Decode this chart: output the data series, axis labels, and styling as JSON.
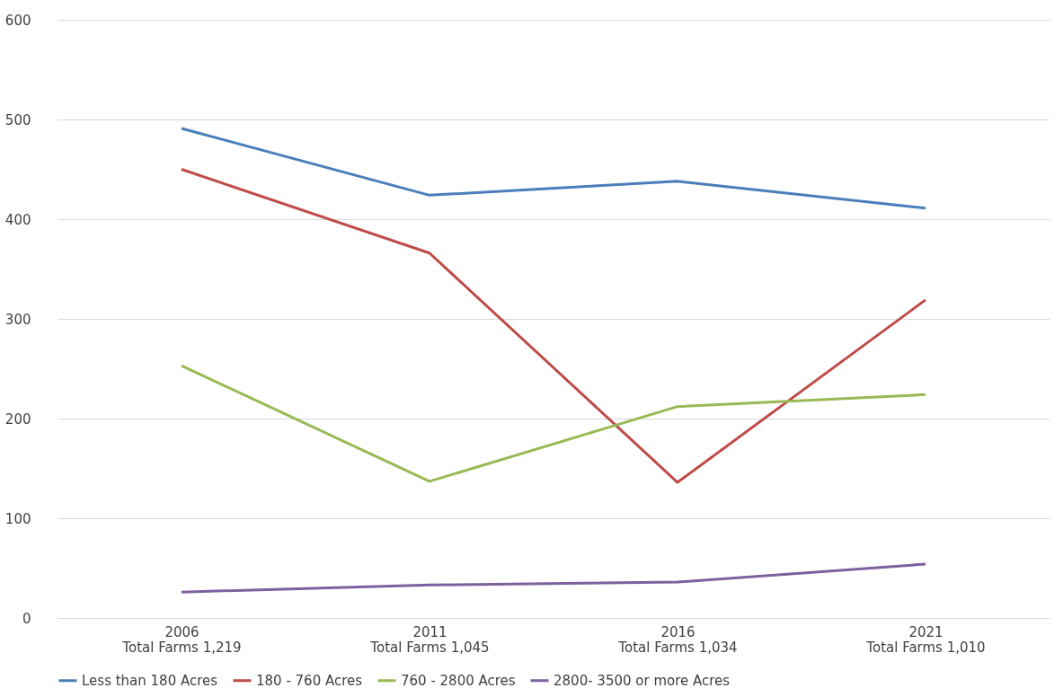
{
  "chart_data": {
    "type": "line",
    "categories": [
      "2006\nTotal Farms 1,219",
      "2011\nTotal Farms 1,045",
      "2016\nTotal Farms 1,034",
      "2021\nTotal Farms 1,010"
    ],
    "series": [
      {
        "name": "Less than 180 Acres",
        "color": "#4a7ebb",
        "values": [
          491,
          424,
          438,
          411
        ]
      },
      {
        "name": "180 - 760 Acres",
        "color": "#be4b48",
        "values": [
          450,
          366,
          136,
          319
        ]
      },
      {
        "name": "760 - 2800 Acres",
        "color": "#98b954",
        "values": [
          253,
          137,
          212,
          224
        ]
      },
      {
        "name": "2800- 3500 or more Acres",
        "color": "#7d60a0",
        "values": [
          26,
          33,
          36,
          54
        ]
      }
    ],
    "ylim": [
      0,
      600
    ],
    "yticks": [
      0,
      100,
      200,
      300,
      400,
      500,
      600
    ],
    "grid": "y",
    "legend": "bottom",
    "marker": "none",
    "line_style": "solid"
  }
}
